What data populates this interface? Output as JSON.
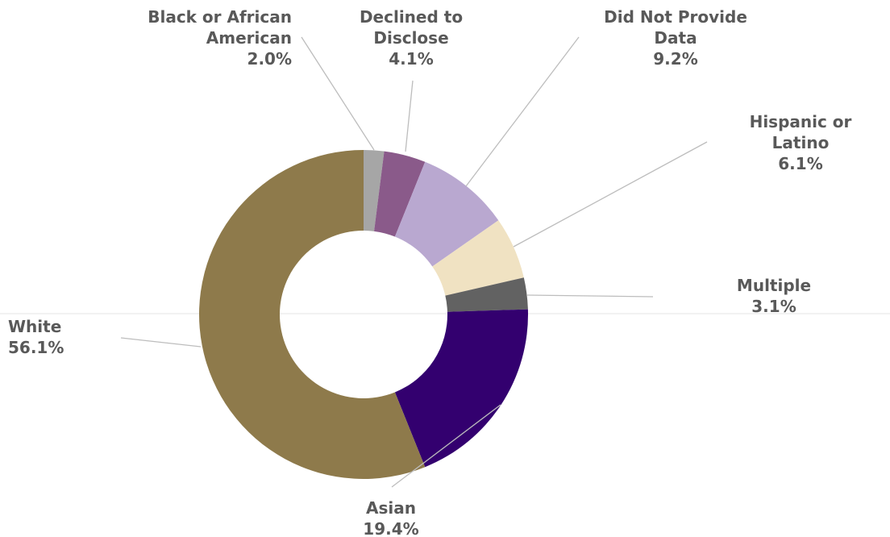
{
  "chart_data": {
    "type": "pie",
    "variant": "donut",
    "start_category": "Black or African American",
    "direction": "clockwise",
    "legend": "none",
    "slices": [
      {
        "label_lines": [
          "Black or African",
          "American"
        ],
        "name": "Black or African American",
        "value": 2.0,
        "value_label": "2.0%",
        "color": "#a6a6a6"
      },
      {
        "label_lines": [
          "Declined to",
          "Disclose"
        ],
        "name": "Declined to Disclose",
        "value": 4.1,
        "value_label": "4.1%",
        "color": "#8a5a8a"
      },
      {
        "label_lines": [
          "Did Not Provide",
          "Data"
        ],
        "name": "Did Not Provide Data",
        "value": 9.2,
        "value_label": "9.2%",
        "color": "#b9a8d0"
      },
      {
        "label_lines": [
          "Hispanic or",
          "Latino"
        ],
        "name": "Hispanic or Latino",
        "value": 6.1,
        "value_label": "6.1%",
        "color": "#f0e2c2"
      },
      {
        "label_lines": [
          "Multiple"
        ],
        "name": "Multiple",
        "value": 3.1,
        "value_label": "3.1%",
        "color": "#626262"
      },
      {
        "label_lines": [
          "Asian"
        ],
        "name": "Asian",
        "value": 19.4,
        "value_label": "19.4%",
        "color": "#33006f"
      },
      {
        "label_lines": [
          "White"
        ],
        "name": "White",
        "value": 56.1,
        "value_label": "56.1%",
        "color": "#8e7a4b"
      }
    ]
  }
}
